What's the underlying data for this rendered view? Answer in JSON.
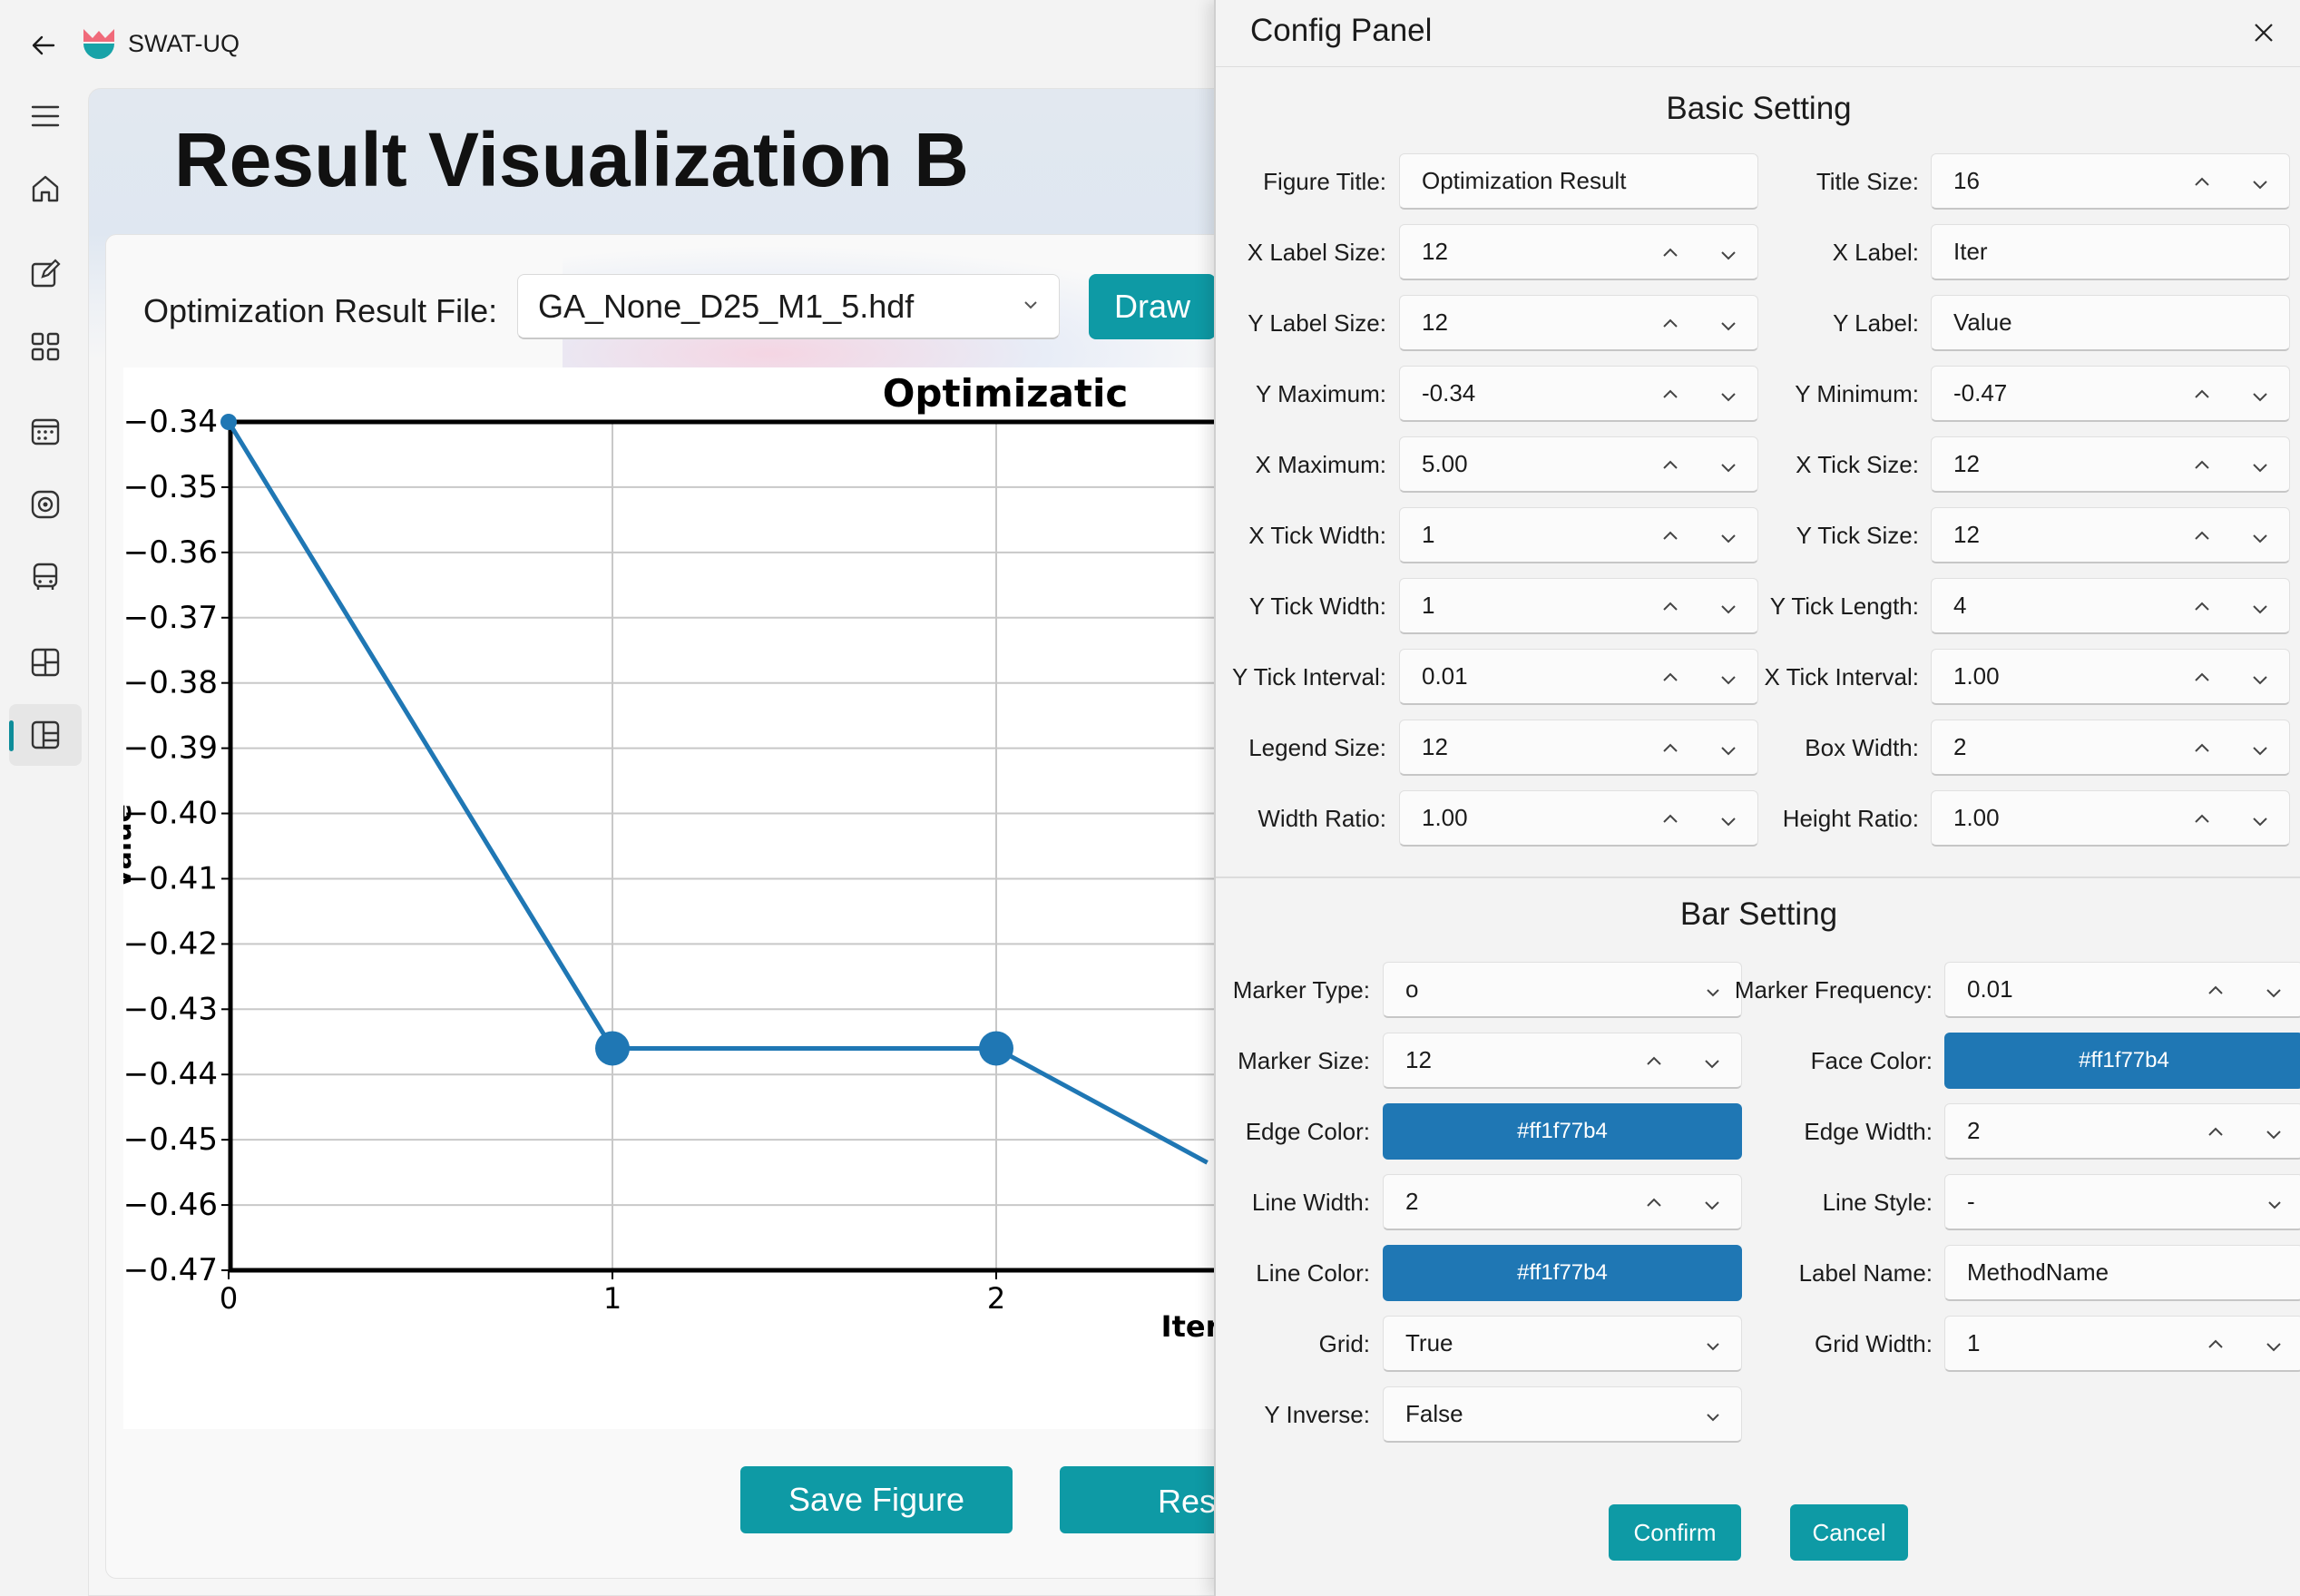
{
  "app": {
    "name": "SWAT-UQ"
  },
  "page": {
    "title": "Result Visualization B",
    "file_label": "Optimization Result File:",
    "file_value": "GA_None_D25_M1_5.hdf",
    "draw_label": "Draw",
    "save_label": "Save Figure",
    "reset_label": "Rese"
  },
  "chart_data": {
    "type": "line",
    "title": "Optimizatic",
    "xlabel": "Iter",
    "ylabel": "Value",
    "x": [
      0,
      1,
      2,
      2.55
    ],
    "series": [
      {
        "values": [
          -0.34,
          -0.436,
          -0.436,
          -0.4535
        ]
      }
    ],
    "xlim": [
      0,
      5
    ],
    "ylim": [
      -0.47,
      -0.34
    ],
    "xticks": [
      "0",
      "1",
      "2"
    ],
    "yticks": [
      "−0.34",
      "−0.35",
      "−0.36",
      "−0.37",
      "−0.38",
      "−0.39",
      "−0.40",
      "−0.41",
      "−0.42",
      "−0.43",
      "−0.44",
      "−0.45",
      "−0.46",
      "−0.47"
    ],
    "grid": true,
    "color": "#1f77b4"
  },
  "panel": {
    "title": "Config Panel",
    "basic_title": "Basic Setting",
    "bar_title": "Bar Setting",
    "confirm": "Confirm",
    "cancel": "Cancel",
    "basic": [
      {
        "l": "Figure Title:",
        "v": "Optimization Result",
        "kind": "text"
      },
      {
        "l": "Title Size:",
        "v": "16",
        "kind": "spin"
      },
      {
        "l": "X Label Size:",
        "v": "12",
        "kind": "spin"
      },
      {
        "l": "X Label:",
        "v": "Iter",
        "kind": "text"
      },
      {
        "l": "Y Label Size:",
        "v": "12",
        "kind": "spin"
      },
      {
        "l": "Y Label:",
        "v": "Value",
        "kind": "text"
      },
      {
        "l": "Y Maximum:",
        "v": "-0.34",
        "kind": "spin"
      },
      {
        "l": "Y Minimum:",
        "v": "-0.47",
        "kind": "spin"
      },
      {
        "l": "X Maximum:",
        "v": "5.00",
        "kind": "spin"
      },
      {
        "l": "X Tick Size:",
        "v": "12",
        "kind": "spin"
      },
      {
        "l": "X Tick Width:",
        "v": "1",
        "kind": "spin"
      },
      {
        "l": "Y Tick Size:",
        "v": "12",
        "kind": "spin"
      },
      {
        "l": "Y Tick Width:",
        "v": "1",
        "kind": "spin"
      },
      {
        "l": "Y Tick Length:",
        "v": "4",
        "kind": "spin"
      },
      {
        "l": "Y Tick Interval:",
        "v": "0.01",
        "kind": "spin"
      },
      {
        "l": "X Tick Interval:",
        "v": "1.00",
        "kind": "spin"
      },
      {
        "l": "Legend Size:",
        "v": "12",
        "kind": "spin"
      },
      {
        "l": "Box Width:",
        "v": "2",
        "kind": "spin"
      },
      {
        "l": "Width Ratio:",
        "v": "1.00",
        "kind": "spin"
      },
      {
        "l": "Height Ratio:",
        "v": "1.00",
        "kind": "spin"
      }
    ],
    "bar": [
      {
        "l": "Marker Type:",
        "v": "o",
        "kind": "select"
      },
      {
        "l": "Marker Frequency:",
        "v": "0.01",
        "kind": "spin"
      },
      {
        "l": "Marker Size:",
        "v": "12",
        "kind": "spin"
      },
      {
        "l": "Face Color:",
        "v": "#ff1f77b4",
        "kind": "color"
      },
      {
        "l": "Edge Color:",
        "v": "#ff1f77b4",
        "kind": "color"
      },
      {
        "l": "Edge Width:",
        "v": "2",
        "kind": "spin"
      },
      {
        "l": "Line Width:",
        "v": "2",
        "kind": "spin"
      },
      {
        "l": "Line Style:",
        "v": "-",
        "kind": "select"
      },
      {
        "l": "Line Color:",
        "v": "#ff1f77b4",
        "kind": "color"
      },
      {
        "l": "Label Name:",
        "v": "MethodName",
        "kind": "text"
      },
      {
        "l": "Grid:",
        "v": "True",
        "kind": "select"
      },
      {
        "l": "Grid Width:",
        "v": "1",
        "kind": "spin"
      },
      {
        "l": "Y Inverse:",
        "v": "False",
        "kind": "select"
      }
    ]
  },
  "colors": {
    "accent": "#0e9aa5",
    "series": "#1f77b4"
  }
}
